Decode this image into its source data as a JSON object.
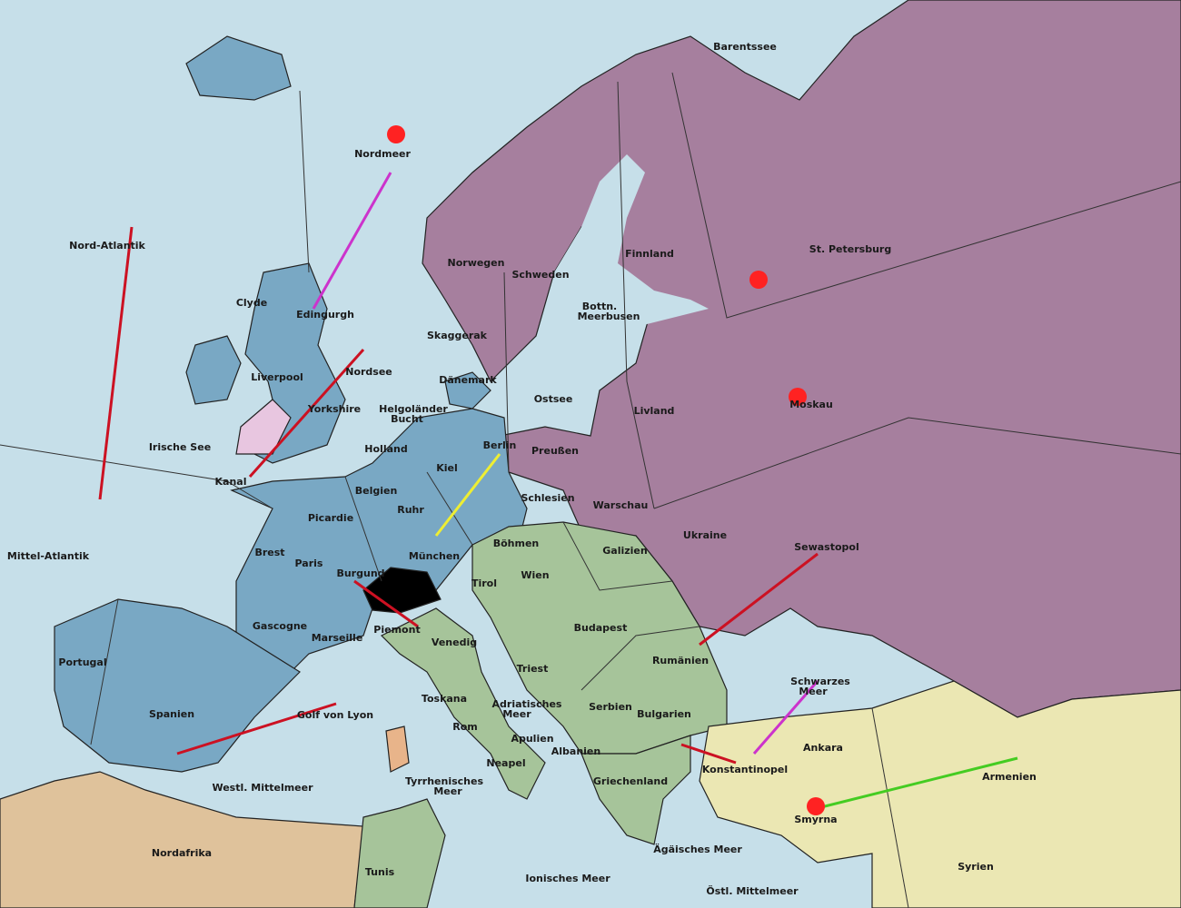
{
  "labels": {
    "barentssee": "Barentssee",
    "nordmeer": "Nordmeer",
    "nord_atlantik": "Nord-Atlantik",
    "finnland": "Finnland",
    "st_petersburg": "St. Petersburg",
    "norwegen": "Norwegen",
    "schweden": "Schweden",
    "bottn": [
      "Bottn.",
      "Meerbusen"
    ],
    "clyde": "Clyde",
    "edinburgh": "Edingurgh",
    "skaggerak": "Skaggerak",
    "nordsee": "Nordsee",
    "liverpool": "Liverpool",
    "daenemark": "Dänemark",
    "ostsee": "Ostsee",
    "yorkshire": "Yorkshire",
    "livland": "Livland",
    "moskau": "Moskau",
    "helgolaender": [
      "Helgoländer",
      "Bucht"
    ],
    "irische_see": "Irische See",
    "preussen": "Preußen",
    "holland": "Holland",
    "berlin": "Berlin",
    "kiel": "Kiel",
    "kanal": "Kanal",
    "belgien": "Belgien",
    "schlesien": "Schlesien",
    "warschau": "Warschau",
    "ruhr": "Ruhr",
    "picardie": "Picardie",
    "ukraine": "Ukraine",
    "brest": "Brest",
    "boehmen": "Böhmen",
    "sewastopol": "Sewastopol",
    "galizien": "Galizien",
    "mittel_atlantik": "Mittel-Atlantik",
    "muenchen": "München",
    "paris": "Paris",
    "burgund": "Burgund",
    "wien": "Wien",
    "tirol": "Tirol",
    "gascogne": "Gascogne",
    "budapest": "Budapest",
    "piemont": "Piemont",
    "marseille": "Marseille",
    "venedig": "Venedig",
    "portugal": "Portugal",
    "rumaenien": "Rumänien",
    "triest": "Triest",
    "schwarzes_meer": [
      "Schwarzes",
      "Meer"
    ],
    "toskana": "Toskana",
    "adriatisches": [
      "Adriatisches",
      "Meer"
    ],
    "spanien": "Spanien",
    "golf_von_lyon": "Golf von Lyon",
    "bulgarien": "Bulgarien",
    "serbien": "Serbien",
    "rom": "Rom",
    "apulien": "Apulien",
    "ankara": "Ankara",
    "albanien": "Albanien",
    "neapel": "Neapel",
    "konstantinopel": "Konstantinopel",
    "armenien": "Armenien",
    "tyrrhenisches": [
      "Tyrrhenisches",
      "Meer"
    ],
    "westl_mittelmeer": "Westl. Mittelmeer",
    "griechenland": "Griechenland",
    "smyrna": "Smyrna",
    "nordafrika": "Nordafrika",
    "aegaeisches": "Ägäisches Meer",
    "syrien": "Syrien",
    "tunis": "Tunis",
    "ionisches": "Ionisches Meer",
    "oestl_mittelmeer": "Östl. Mittelmeer"
  }
}
